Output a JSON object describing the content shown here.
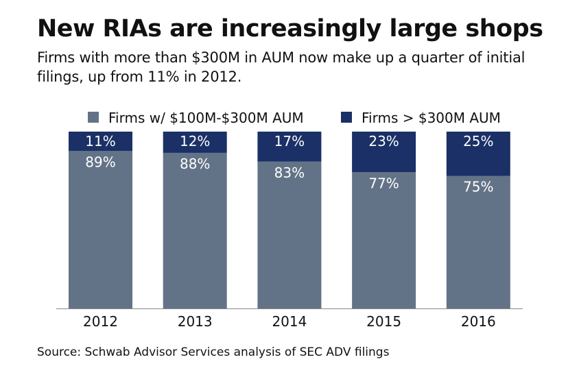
{
  "title": "New RIAs are increasingly large shops",
  "subtitle": "Firms with more than $300M in AUM now make up a quarter of initial filings, up from 11% in 2012.",
  "source": "Source: Schwab Advisor Services analysis of SEC ADV filings",
  "chart_data": {
    "type": "bar",
    "stacked": true,
    "categories": [
      "2012",
      "2013",
      "2014",
      "2015",
      "2016"
    ],
    "series": [
      {
        "name": "Firms w/ $100M-$300M AUM",
        "values": [
          89,
          88,
          83,
          77,
          75
        ],
        "labels": [
          "89%",
          "88%",
          "83%",
          "77%",
          "75%"
        ],
        "color": "#637387"
      },
      {
        "name": "Firms > $300M AUM",
        "values": [
          11,
          12,
          17,
          23,
          25
        ],
        "labels": [
          "11%",
          "12%",
          "17%",
          "23%",
          "25%"
        ],
        "color": "#1b3066"
      }
    ],
    "ylim": [
      0,
      100
    ],
    "grid": false,
    "legend": "top"
  }
}
